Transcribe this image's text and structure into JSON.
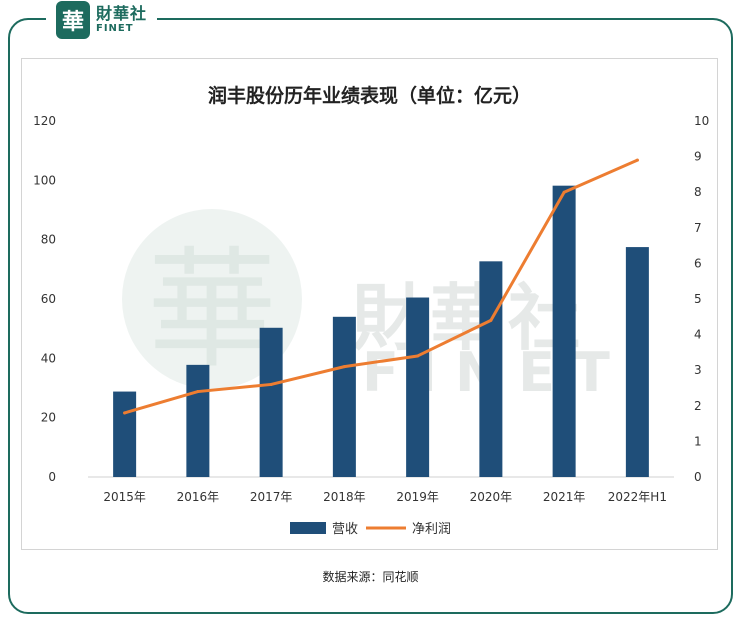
{
  "brand": {
    "seal_char": "華",
    "name_cn": "財華社",
    "name_en": "FINET"
  },
  "source_text": "数据来源：同花顺",
  "colors": {
    "bar": "#1f4e79",
    "line": "#ed7d31",
    "frame": "#1d6b5e"
  },
  "chart_data": {
    "type": "bar+line",
    "title": "润丰股份历年业绩表现（单位：亿元）",
    "categories": [
      "2015年",
      "2016年",
      "2017年",
      "2018年",
      "2019年",
      "2020年",
      "2021年",
      "2022年H1"
    ],
    "series": [
      {
        "name": "营收",
        "type": "bar",
        "axis": "left",
        "values": [
          28.8,
          37.8,
          50.3,
          54.0,
          60.5,
          72.7,
          98.2,
          77.5
        ]
      },
      {
        "name": "净利润",
        "type": "line",
        "axis": "right",
        "values": [
          1.8,
          2.4,
          2.6,
          3.1,
          3.4,
          4.4,
          8.0,
          8.9
        ]
      }
    ],
    "ylim_left": [
      0,
      120
    ],
    "yticks_left": [
      0,
      20,
      40,
      60,
      80,
      100,
      120
    ],
    "ylim_right": [
      0,
      10
    ],
    "yticks_right": [
      0,
      1,
      2,
      3,
      4,
      5,
      6,
      7,
      8,
      9,
      10
    ],
    "legend_position": "bottom",
    "grid": false
  }
}
